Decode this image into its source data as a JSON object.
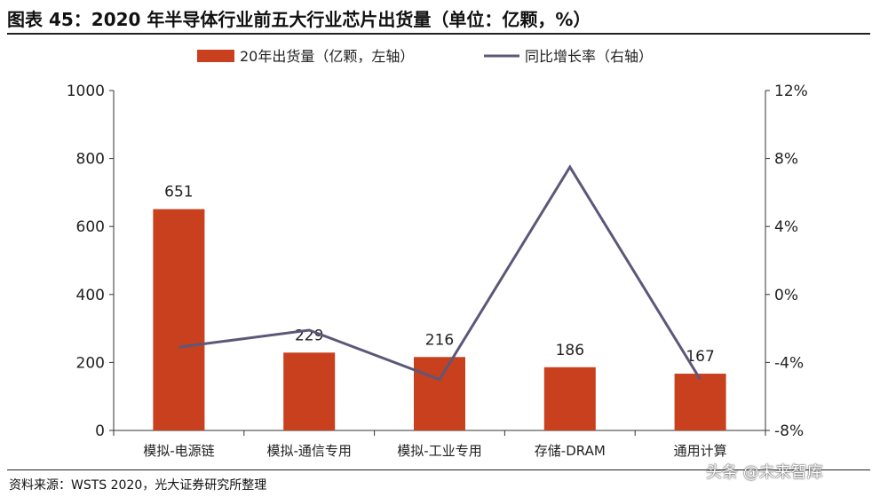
{
  "title": "图表 45：2020 年半导体行业前五大行业芯片出货量（单位：亿颗，%）",
  "source": "资料来源：WSTS 2020，光大证券研究所整理",
  "watermark": "头条 @未来智库",
  "colors": {
    "bar": "#C8401E",
    "line": "#5B5878"
  },
  "chart_data": {
    "type": "bar+line",
    "categories": [
      "模拟-电源链",
      "模拟-通信专用",
      "模拟-工业专用",
      "存储-DRAM",
      "通用计算"
    ],
    "series": [
      {
        "name": "20年出货量（亿颗，左轴）",
        "type": "bar",
        "axis": "left",
        "values": [
          651,
          229,
          216,
          186,
          167
        ],
        "labels": [
          "651",
          "229",
          "216",
          "186",
          "167"
        ]
      },
      {
        "name": "同比增长率（右轴）",
        "type": "line",
        "axis": "right",
        "values": [
          -3.1,
          -2.1,
          -5.0,
          7.5,
          -5.0
        ]
      }
    ],
    "left_axis": {
      "range": [
        0,
        1000
      ],
      "ticks": [
        "0",
        "200",
        "400",
        "600",
        "800",
        "1000"
      ]
    },
    "right_axis": {
      "range": [
        -8,
        12
      ],
      "ticks": [
        "-8%",
        "-4%",
        "0%",
        "4%",
        "8%",
        "12%"
      ]
    },
    "legend_position": "top-center",
    "grid": false
  }
}
